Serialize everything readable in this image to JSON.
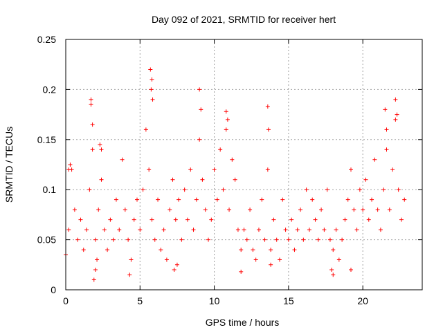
{
  "chart_data": {
    "type": "scatter",
    "title": "Day 092 of 2021, SRMTID for receiver hert",
    "xlabel": "GPS time / hours",
    "ylabel": "SRMTID / TECUs",
    "xlim": [
      0,
      24
    ],
    "ylim": [
      0,
      0.25
    ],
    "xticks": [
      0,
      5,
      10,
      15,
      20
    ],
    "xtick_labels": [
      "0",
      "5",
      "10",
      "15",
      "20"
    ],
    "yticks": [
      0,
      0.05,
      0.1,
      0.15,
      0.2,
      0.25
    ],
    "ytick_labels": [
      "0",
      "0.05",
      "0.1",
      "0.15",
      "0.2",
      "0.25"
    ],
    "grid": true,
    "marker": "+",
    "series": [
      {
        "name": "SRMTID",
        "color": "#ff0000",
        "x": [
          0.0,
          0.2,
          0.4,
          0.6,
          0.8,
          1.0,
          1.2,
          1.4,
          1.6,
          1.8,
          2.0,
          2.2,
          2.4,
          2.6,
          2.8,
          3.0,
          3.2,
          3.4,
          3.6,
          3.8,
          4.0,
          4.2,
          4.4,
          4.6,
          4.8,
          5.0,
          5.2,
          5.4,
          5.6,
          5.8,
          6.0,
          6.2,
          6.4,
          6.6,
          6.8,
          7.0,
          7.2,
          7.4,
          7.6,
          7.8,
          8.0,
          8.2,
          8.4,
          8.6,
          8.8,
          9.0,
          9.2,
          9.4,
          9.6,
          9.8,
          10.0,
          10.2,
          10.4,
          10.6,
          10.8,
          11.0,
          11.2,
          11.4,
          11.6,
          11.8,
          12.0,
          12.2,
          12.4,
          12.6,
          12.8,
          13.0,
          13.2,
          13.4,
          13.6,
          13.8,
          14.0,
          14.2,
          14.4,
          14.6,
          14.8,
          15.0,
          15.2,
          15.4,
          15.6,
          15.8,
          16.0,
          16.2,
          16.4,
          16.6,
          16.8,
          17.0,
          17.2,
          17.4,
          17.6,
          17.8,
          18.0,
          18.2,
          18.4,
          18.6,
          18.8,
          19.0,
          19.2,
          19.4,
          19.6,
          19.8,
          20.0,
          20.2,
          20.4,
          20.6,
          20.8,
          21.0,
          21.2,
          21.4,
          21.6,
          21.8,
          22.0,
          22.2,
          22.4,
          22.6,
          22.8,
          1.7,
          1.7,
          1.8,
          5.7,
          5.75,
          5.8,
          5.85,
          9.0,
          9.1,
          13.6,
          13.65,
          22.2,
          22.3,
          21.5,
          21.6,
          10.8,
          10.9,
          2.3,
          2.4,
          0.2,
          0.3,
          1.9,
          2.0,
          2.1,
          4.3,
          7.3,
          7.5,
          11.8,
          13.8,
          17.9,
          18.0,
          19.2
        ],
        "y": [
          0.035,
          0.06,
          0.12,
          0.08,
          0.05,
          0.07,
          0.04,
          0.06,
          0.1,
          0.14,
          0.05,
          0.08,
          0.11,
          0.06,
          0.04,
          0.07,
          0.05,
          0.09,
          0.06,
          0.13,
          0.08,
          0.05,
          0.03,
          0.07,
          0.09,
          0.06,
          0.1,
          0.16,
          0.12,
          0.07,
          0.05,
          0.09,
          0.04,
          0.06,
          0.03,
          0.08,
          0.11,
          0.07,
          0.09,
          0.05,
          0.1,
          0.07,
          0.12,
          0.06,
          0.09,
          0.15,
          0.11,
          0.08,
          0.05,
          0.07,
          0.12,
          0.09,
          0.14,
          0.1,
          0.16,
          0.08,
          0.13,
          0.11,
          0.06,
          0.04,
          0.06,
          0.05,
          0.08,
          0.04,
          0.03,
          0.06,
          0.09,
          0.05,
          0.12,
          0.04,
          0.07,
          0.05,
          0.03,
          0.09,
          0.06,
          0.05,
          0.07,
          0.04,
          0.06,
          0.08,
          0.05,
          0.1,
          0.06,
          0.09,
          0.07,
          0.05,
          0.08,
          0.06,
          0.1,
          0.05,
          0.04,
          0.06,
          0.03,
          0.05,
          0.07,
          0.09,
          0.12,
          0.08,
          0.06,
          0.1,
          0.08,
          0.11,
          0.07,
          0.09,
          0.13,
          0.08,
          0.06,
          0.1,
          0.14,
          0.08,
          0.12,
          0.17,
          0.1,
          0.07,
          0.09,
          0.185,
          0.19,
          0.165,
          0.22,
          0.2,
          0.21,
          0.19,
          0.2,
          0.18,
          0.183,
          0.16,
          0.19,
          0.175,
          0.18,
          0.16,
          0.178,
          0.17,
          0.145,
          0.14,
          0.12,
          0.125,
          0.01,
          0.02,
          0.03,
          0.015,
          0.02,
          0.025,
          0.018,
          0.025,
          0.02,
          0.015,
          0.02
        ]
      }
    ]
  }
}
